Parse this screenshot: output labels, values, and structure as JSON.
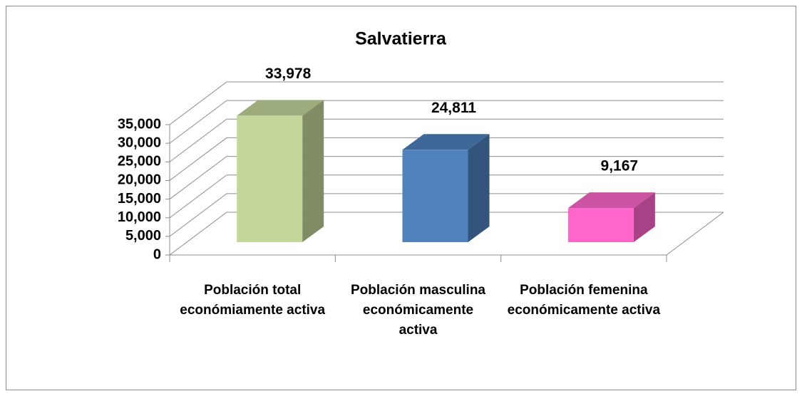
{
  "chart_data": {
    "type": "bar3d",
    "title": "Salvatierra",
    "categories": [
      "Población total económiamente activa",
      "Población masculina económicamente activa",
      "Población femenina económicamente activa"
    ],
    "values": [
      33978,
      24811,
      9167
    ],
    "value_labels": [
      "33,978",
      "24,811",
      "9,167"
    ],
    "colors": [
      "#c4d79b",
      "#4f81bd",
      "#ff66cc"
    ],
    "ylim": [
      0,
      35000
    ],
    "yticks": [
      0,
      {
        "value": 5000,
        "label": "5,000"
      },
      {
        "value": 10000,
        "label": "10,000"
      },
      {
        "value": 15000,
        "label": "15,000"
      },
      {
        "value": 20000,
        "label": "20,000"
      },
      {
        "value": 25000,
        "label": "25,000"
      },
      {
        "value": 30000,
        "label": "30,000"
      },
      {
        "value": 35000,
        "label": "35,000"
      }
    ],
    "grid": true
  }
}
